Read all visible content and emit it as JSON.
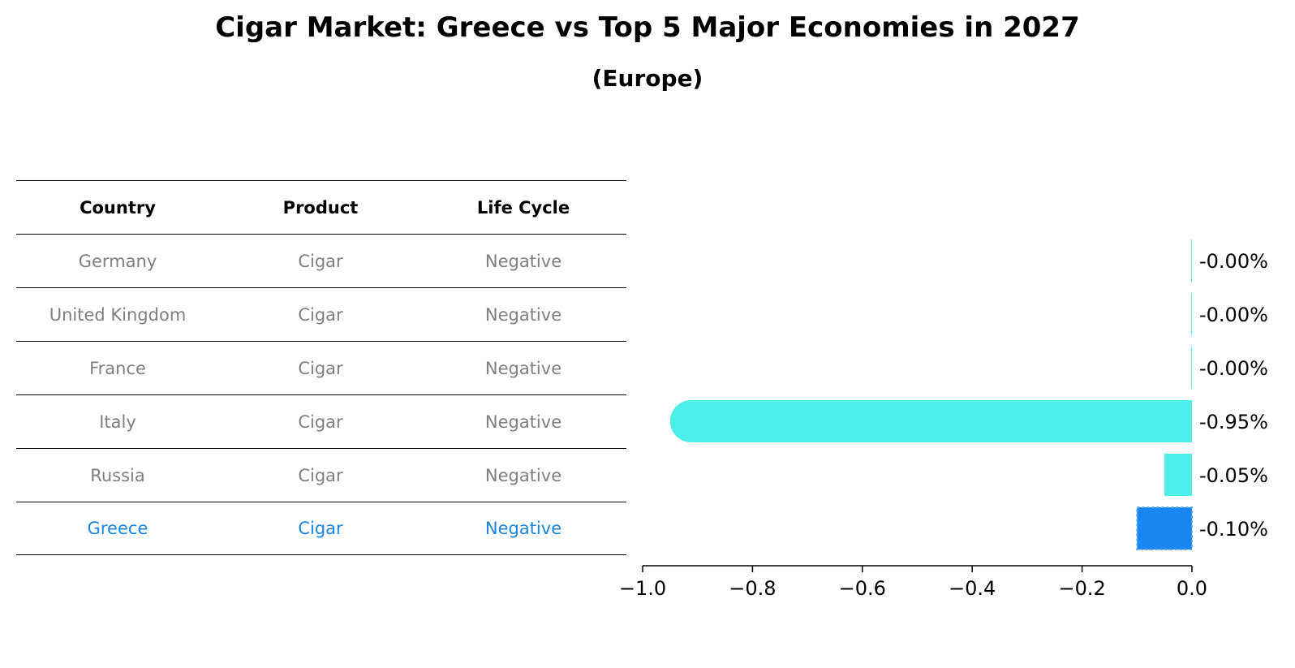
{
  "title": "Cigar Market: Greece vs Top 5 Major Economies in 2027",
  "subtitle": "(Europe)",
  "table": {
    "headers": [
      "Country",
      "Product",
      "Life Cycle"
    ],
    "rows": [
      [
        "Germany",
        "Cigar",
        "Negative"
      ],
      [
        "United Kingdom",
        "Cigar",
        "Negative"
      ],
      [
        "France",
        "Cigar",
        "Negative"
      ],
      [
        "Italy",
        "Cigar",
        "Negative"
      ],
      [
        "Russia",
        "Cigar",
        "Negative"
      ],
      [
        "Greece",
        "Cigar",
        "Negative"
      ]
    ],
    "highlight_row": 5
  },
  "chart_data": {
    "type": "bar",
    "orientation": "horizontal",
    "categories": [
      "Germany",
      "United Kingdom",
      "France",
      "Italy",
      "Russia",
      "Greece"
    ],
    "values": [
      -0.0,
      -0.0,
      -0.0,
      -0.95,
      -0.05,
      -0.1
    ],
    "value_labels": [
      "-0.00%",
      "-0.00%",
      "-0.00%",
      "-0.95%",
      "-0.05%",
      "-0.10%"
    ],
    "xlim": [
      -1.0,
      0.0
    ],
    "xticks": [
      -1.0,
      -0.8,
      -0.6,
      -0.4,
      -0.2,
      0.0
    ],
    "xtick_labels": [
      "−1.0",
      "−0.8",
      "−0.6",
      "−0.4",
      "−0.2",
      "0.0"
    ],
    "grid": false,
    "colors": {
      "bar": "#4ceeea",
      "highlight": "#1a86f0",
      "axis": "#000000"
    }
  }
}
